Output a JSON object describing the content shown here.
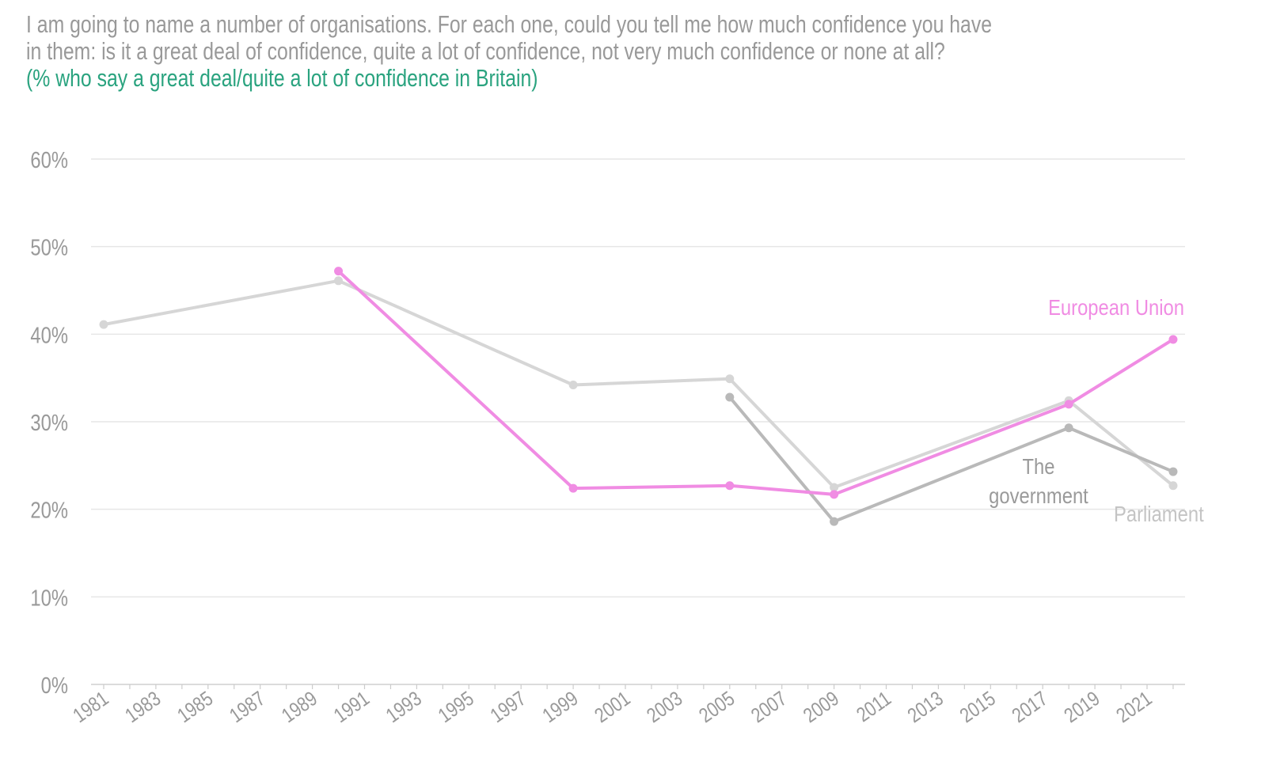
{
  "title": {
    "line1": "I am going to name a number of organisations. For each one, could you tell me how much confidence you have",
    "line2": "in them: is it a great deal of confidence, quite a lot of confidence, not very much confidence or none at all?",
    "subtitle": "(% who say a great deal/quite a lot of confidence in Britain)"
  },
  "chart_data": {
    "type": "line",
    "xlim": [
      1981,
      2022
    ],
    "ylim": [
      0,
      60
    ],
    "yticks": [
      0,
      10,
      20,
      30,
      40,
      50,
      60
    ],
    "ytick_labels": [
      "0%",
      "10%",
      "20%",
      "30%",
      "40%",
      "50%",
      "60%"
    ],
    "xtick_labels": [
      "1981",
      "1983",
      "1985",
      "1987",
      "1989",
      "1991",
      "1993",
      "1995",
      "1997",
      "1999",
      "2001",
      "2003",
      "2005",
      "2007",
      "2009",
      "2011",
      "2013",
      "2015",
      "2017",
      "2019",
      "2021"
    ],
    "grid": true,
    "series": [
      {
        "name": "Parliament",
        "label": "Parliament",
        "color": "#d6d6d6",
        "label_color": "#c4c4c4",
        "x": [
          1981,
          1990,
          1999,
          2005,
          2009,
          2018,
          2022
        ],
        "y": [
          41.1,
          46.1,
          34.2,
          34.9,
          22.5,
          32.4,
          22.7
        ]
      },
      {
        "name": "The government",
        "label_lines": [
          "The",
          "government"
        ],
        "color": "#b9b9b9",
        "label_color": "#9a9a9a",
        "x": [
          2005,
          2009,
          2018,
          2022
        ],
        "y": [
          32.8,
          18.6,
          29.3,
          24.3
        ]
      },
      {
        "name": "European Union",
        "label": "European Union",
        "color": "#f08ce3",
        "label_color": "#f08ce3",
        "x": [
          1990,
          1999,
          2005,
          2009,
          2018,
          2022
        ],
        "y": [
          47.2,
          22.4,
          22.7,
          21.7,
          32.0,
          39.4
        ]
      }
    ]
  }
}
